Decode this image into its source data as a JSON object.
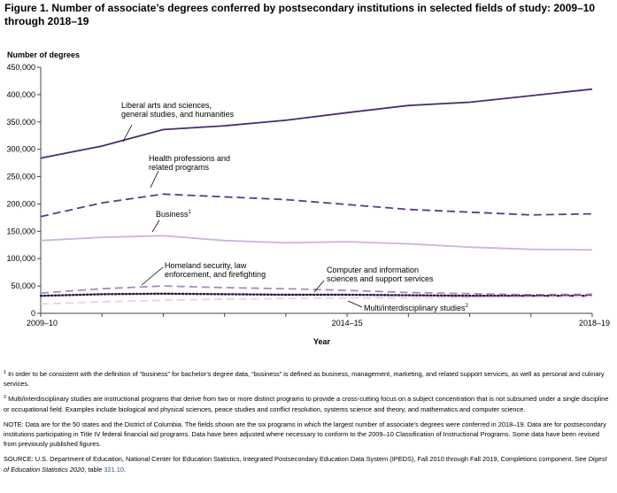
{
  "figure": {
    "title": "Figure 1. Number of associate’s degrees conferred by postsecondary institutions in selected fields of study: 2009–10 through 2018–19"
  },
  "chart_data": {
    "type": "line",
    "ylabel": "Number of degrees",
    "xlabel": "Year",
    "ylim": [
      0,
      450000
    ],
    "yticks": [
      0,
      50000,
      100000,
      150000,
      200000,
      250000,
      300000,
      350000,
      400000,
      450000
    ],
    "ytick_labels": [
      "0",
      "50,000",
      "100,000",
      "150,000",
      "200,000",
      "250,000",
      "300,000",
      "350,000",
      "400,000",
      "450,000"
    ],
    "x": [
      "2009–10",
      "2010–11",
      "2011–12",
      "2012–13",
      "2013–14",
      "2014–15",
      "2015–16",
      "2016–17",
      "2017–18",
      "2018–19"
    ],
    "xtick_labels": [
      "2009–10",
      "2014–15",
      "2018–19"
    ],
    "grid": false,
    "series": [
      {
        "name": "Liberal arts and sciences, general studies, and humanities",
        "label_lines": [
          "Liberal arts and sciences,",
          "general studies, and humanities"
        ],
        "values": [
          284000,
          306000,
          336000,
          343000,
          353000,
          367000,
          380000,
          386000,
          398000,
          410000
        ],
        "color": "#4b2c72",
        "dash": "solid"
      },
      {
        "name": "Health professions and related programs",
        "label_lines": [
          "Health professions and",
          "related programs"
        ],
        "values": [
          177000,
          202000,
          218000,
          213000,
          208000,
          199000,
          190000,
          185000,
          180000,
          182000
        ],
        "color": "#5e3a8c",
        "dash": "dash"
      },
      {
        "name": "Business",
        "label_lines": [
          "Business"
        ],
        "footnote": "1",
        "values": [
          133000,
          139000,
          142000,
          133000,
          129000,
          131000,
          127000,
          121000,
          117000,
          116000
        ],
        "color": "#cfb3dc",
        "dash": "solid"
      },
      {
        "name": "Homeland security, law enforcement, and firefighting",
        "label_lines": [
          "Homeland security, law",
          "enforcement, and firefighting"
        ],
        "values": [
          37000,
          45000,
          50000,
          47000,
          45000,
          42000,
          38000,
          36000,
          34000,
          35000
        ],
        "color": "#a888bf",
        "dash": "dash"
      },
      {
        "name": "Computer and information sciences and support services",
        "label_lines": [
          "Computer and information",
          "sciences and support services"
        ],
        "values": [
          32000,
          35000,
          36000,
          35000,
          34000,
          34000,
          33000,
          32000,
          32000,
          32000
        ],
        "color": "#2e1a47",
        "dash": "dot"
      },
      {
        "name": "Multi/interdisciplinary studies",
        "label_lines": [
          "Multi/interdisciplinary studies"
        ],
        "footnote": "2",
        "values": [
          17000,
          21000,
          24000,
          26000,
          27000,
          28000,
          28000,
          29000,
          30000,
          31000
        ],
        "color": "#e3d2ea",
        "dash": "dash"
      }
    ]
  },
  "notes": {
    "fn1_mark": "1",
    "fn1": "In order to be consistent with the definition of “business” for bachelor’s degree data, “business” is defined as business, management, marketing, and related support services, as well as personal and culinary services.",
    "fn2_mark": "2",
    "fn2": "Multi/interdisciplinary studies are instructional programs that derive from two or more distinct programs to provide a cross-cutting focus on a subject concentration that is not subsumed under a single discipline or occupational field. Examples include biological and physical sciences, peace studies and conflict resolution, systems science and theory, and mathematics and computer science.",
    "note": "NOTE: Data are for the 50 states and the District of Columbia. The fields shown are the six programs in which the largest number of associate’s degrees were conferred in 2018–19. Data are for postsecondary institutions participating in Title IV federal financial aid programs. Data have been adjusted where necessary to conform to the 2009–10 Classification of Instructional Programs. Some data have been revised from previously published figures.",
    "source_pre": "SOURCE: U.S. Department of Education, National Center for Education Statistics, Integrated Postsecondary Education Data System (IPEDS), Fall 2010 through Fall 2019, Completions component. See ",
    "source_pub": "Digest of Education Statistics 2020",
    "source_mid": ", table ",
    "source_table": "321.10",
    "source_end": "."
  }
}
